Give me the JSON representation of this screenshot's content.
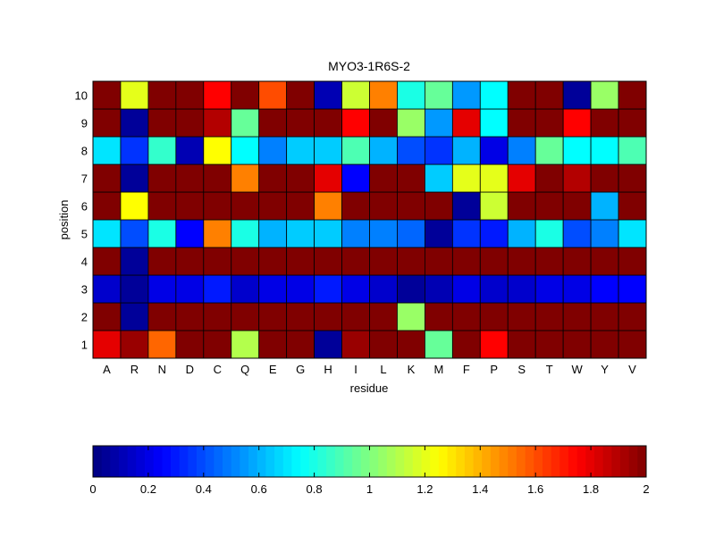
{
  "chart_data": {
    "type": "heatmap",
    "title": "MYO3-1R6S-2",
    "xlabel": "residue",
    "ylabel": "position",
    "x_categories": [
      "A",
      "R",
      "N",
      "D",
      "C",
      "Q",
      "E",
      "G",
      "H",
      "I",
      "L",
      "K",
      "M",
      "F",
      "P",
      "S",
      "T",
      "W",
      "Y",
      "V"
    ],
    "y_categories": [
      "1",
      "2",
      "3",
      "4",
      "5",
      "6",
      "7",
      "8",
      "9",
      "10"
    ],
    "values": [
      [
        1.8,
        1.95,
        1.55,
        2,
        2,
        1.1,
        2,
        2,
        0.05,
        1.95,
        2,
        2,
        0.95,
        2,
        1.75,
        2,
        2,
        2,
        2,
        2
      ],
      [
        2,
        0.05,
        2,
        2,
        2,
        2,
        2,
        2,
        2,
        2,
        2,
        1.05,
        2,
        2,
        2,
        2,
        2,
        2,
        2,
        2
      ],
      [
        0.15,
        0.05,
        0.2,
        0.2,
        0.3,
        0.15,
        0.2,
        0.2,
        0.3,
        0.2,
        0.15,
        0.05,
        0.1,
        0.2,
        0.15,
        0.15,
        0.2,
        0.2,
        0.25,
        0.25
      ],
      [
        2,
        0.05,
        2,
        2,
        2,
        2,
        2,
        2,
        2,
        2,
        2,
        2,
        2,
        2,
        2,
        2,
        2,
        2,
        2,
        2
      ],
      [
        0.7,
        0.4,
        0.8,
        0.25,
        1.5,
        0.8,
        0.6,
        0.65,
        0.65,
        0.5,
        0.5,
        0.45,
        0.05,
        0.35,
        0.3,
        0.6,
        0.8,
        0.4,
        0.5,
        0.7
      ],
      [
        2,
        1.25,
        2,
        2,
        2,
        2,
        2,
        2,
        1.5,
        2,
        2,
        2,
        2,
        0.05,
        1.15,
        2,
        2,
        2,
        0.6,
        2
      ],
      [
        2,
        0.05,
        2,
        2,
        2,
        1.5,
        2,
        2,
        1.8,
        0.25,
        2,
        2,
        0.65,
        1.2,
        1.2,
        1.8,
        2,
        1.9,
        2,
        2
      ],
      [
        0.7,
        0.35,
        0.85,
        0.1,
        1.25,
        0.75,
        0.5,
        0.65,
        0.65,
        0.9,
        0.6,
        0.4,
        0.35,
        0.6,
        0.2,
        0.5,
        0.95,
        0.75,
        0.75,
        0.9
      ],
      [
        2,
        0.05,
        2,
        2,
        1.9,
        0.95,
        2,
        2,
        2,
        1.75,
        2,
        1.05,
        0.55,
        1.8,
        0.75,
        2,
        2,
        1.75,
        2,
        2
      ],
      [
        2,
        1.2,
        2,
        2,
        1.75,
        2,
        1.6,
        2,
        0.1,
        1.15,
        1.5,
        0.8,
        0.95,
        0.55,
        0.75,
        2,
        2,
        0.05,
        1.05,
        2
      ]
    ],
    "colorbar": {
      "min": 0,
      "max": 2,
      "colormap": "jet",
      "ticks": [
        "0",
        "0.2",
        "0.4",
        "0.6",
        "0.8",
        "1",
        "1.2",
        "1.4",
        "1.6",
        "1.8",
        "2"
      ]
    },
    "grid": false
  }
}
